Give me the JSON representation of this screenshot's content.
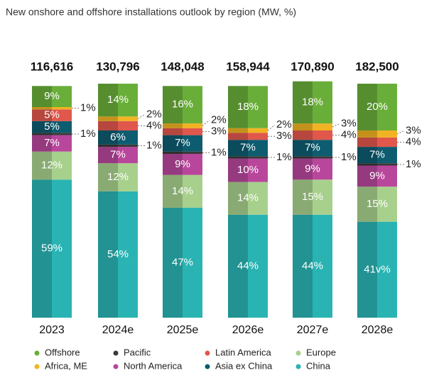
{
  "chart_data": {
    "type": "stacked-bar",
    "title": "New onshore and offshore installations outlook by region (MW, %)",
    "categories": [
      "2023",
      "2024e",
      "2025e",
      "2026e",
      "2027e",
      "2028e"
    ],
    "totals": {
      "values": [
        116616,
        130796,
        148048,
        158944,
        170890,
        182500
      ],
      "value_labels": [
        "116,616",
        "130,796",
        "148,048",
        "158,944",
        "170,890",
        "182,500"
      ]
    },
    "series": [
      {
        "name": "China",
        "color": "#2ab3b3",
        "values": [
          59,
          54,
          47,
          44,
          44,
          41
        ],
        "value_labels": [
          "59%",
          "54%",
          "47%",
          "44%",
          "44%",
          "41v%"
        ]
      },
      {
        "name": "Europe",
        "color": "#a8d08d",
        "values": [
          12,
          12,
          14,
          14,
          15,
          15
        ],
        "value_labels": [
          "12%",
          "12%",
          "14%",
          "14%",
          "15%",
          "15%"
        ]
      },
      {
        "name": "North America",
        "color": "#b8479c",
        "values": [
          7,
          7,
          9,
          10,
          9,
          9
        ],
        "value_labels": [
          "7%",
          "7%",
          "9%",
          "10%",
          "9%",
          "9%"
        ]
      },
      {
        "name": "Pacific",
        "color": "#3a3a3a",
        "values": [
          1,
          1,
          1,
          1,
          1,
          1
        ],
        "value_labels": [
          "1%",
          "1%",
          "1%",
          "1%",
          "1%",
          "1%"
        ]
      },
      {
        "name": "Asia ex China",
        "color": "#0e5c70",
        "values": [
          5,
          6,
          7,
          7,
          7,
          7
        ],
        "value_labels": [
          "5%",
          "6%",
          "7%",
          "7%",
          "7%",
          "7%"
        ]
      },
      {
        "name": "Latin America",
        "color": "#e0574c",
        "values": [
          5,
          4,
          3,
          3,
          4,
          4
        ],
        "value_labels": [
          "5%",
          "4%",
          "3%",
          "3%",
          "4%",
          "4%"
        ]
      },
      {
        "name": "Africa, ME",
        "color": "#f0b323",
        "values": [
          1,
          2,
          2,
          2,
          3,
          3
        ],
        "value_labels": [
          "1%",
          "2%",
          "2%",
          "2%",
          "3%",
          "3%"
        ]
      },
      {
        "name": "Offshore",
        "color": "#6aae3a",
        "values": [
          9,
          14,
          16,
          18,
          18,
          20
        ],
        "value_labels": [
          "9%",
          "14%",
          "16%",
          "18%",
          "18%",
          "20%"
        ]
      }
    ]
  }
}
